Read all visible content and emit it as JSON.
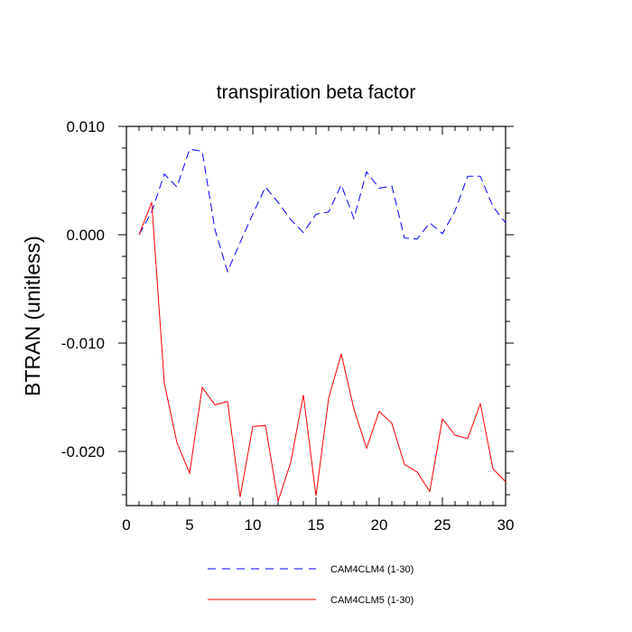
{
  "chart_data": {
    "type": "line",
    "title": "transpiration beta factor",
    "xlabel": "",
    "ylabel": "BTRAN  (unitless)",
    "xlim": [
      0,
      30
    ],
    "ylim": [
      -0.025,
      0.0105
    ],
    "x_ticks": [
      0,
      5,
      10,
      15,
      20,
      25,
      30
    ],
    "x_tick_labels": [
      "0",
      "5",
      "10",
      "15",
      "20",
      "25",
      "30"
    ],
    "y_ticks": [
      0.01,
      0.0,
      -0.01,
      -0.02
    ],
    "y_tick_labels": [
      "0.010",
      "0.000",
      "-0.010",
      "-0.020"
    ],
    "grid": false,
    "legend_position": "bottom",
    "x": [
      1,
      2,
      3,
      4,
      5,
      6,
      7,
      8,
      9,
      10,
      11,
      12,
      13,
      14,
      15,
      16,
      17,
      18,
      19,
      20,
      21,
      22,
      23,
      24,
      25,
      26,
      27,
      28,
      29,
      30
    ],
    "series": [
      {
        "name": "CAM4CLM4 (1-30)",
        "color": "#0000ff",
        "line_style": "dashed",
        "values": [
          0.0,
          0.0021,
          0.0056,
          0.0044,
          0.0079,
          0.0077,
          0.0005,
          -0.0034,
          -0.0007,
          0.0019,
          0.0044,
          0.003,
          0.0014,
          0.0002,
          0.0019,
          0.0021,
          0.0046,
          0.0015,
          0.0058,
          0.0043,
          0.0045,
          -0.0003,
          -0.0004,
          0.0011,
          0.0001,
          0.0022,
          0.0054,
          0.0054,
          0.0026,
          0.0011
        ]
      },
      {
        "name": "CAM4CLM5 (1-30)",
        "color": "#ff0000",
        "line_style": "solid",
        "values": [
          0.0,
          0.003,
          -0.0137,
          -0.0192,
          -0.022,
          -0.0141,
          -0.0157,
          -0.0154,
          -0.0242,
          -0.0177,
          -0.0176,
          -0.0246,
          -0.021,
          -0.0148,
          -0.0241,
          -0.0151,
          -0.011,
          -0.0161,
          -0.0197,
          -0.0163,
          -0.0174,
          -0.0212,
          -0.0219,
          -0.0237,
          -0.017,
          -0.0185,
          -0.0188,
          -0.0156,
          -0.0216,
          -0.0228
        ]
      }
    ]
  }
}
